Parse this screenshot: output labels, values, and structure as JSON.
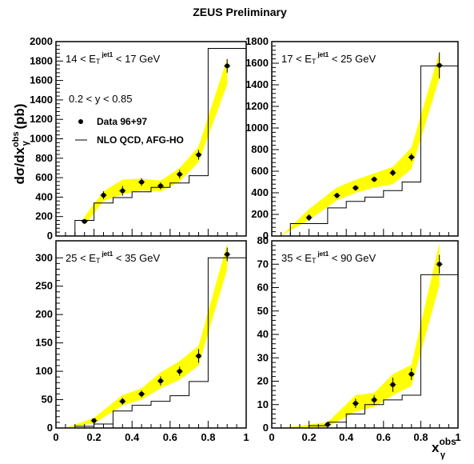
{
  "chart_data": {
    "title": "ZEUS Preliminary",
    "ylabel": {
      "main": "dσ/dx",
      "sup": "obs",
      "sub": "γ",
      "unit": " (pb)"
    },
    "xlabel": {
      "main": "x",
      "sup": "obs",
      "sub": "γ"
    },
    "panels": [
      {
        "type": "scatter",
        "range_label": "14 < E",
        "range_label_sub": "T",
        "range_label_sup": "jet1",
        "range_label_end": " < 17 GeV",
        "xlim": [
          0,
          1
        ],
        "ylim": [
          0,
          2000
        ],
        "yticks": [
          0,
          200,
          400,
          600,
          800,
          1000,
          1200,
          1400,
          1600,
          1800,
          2000
        ],
        "xticks": [],
        "data": {
          "x": [
            0.15,
            0.25,
            0.35,
            0.45,
            0.55,
            0.65,
            0.75,
            0.9
          ],
          "y": [
            150,
            420,
            465,
            555,
            515,
            635,
            835,
            1750
          ],
          "err": [
            20,
            40,
            50,
            40,
            35,
            45,
            50,
            70
          ]
        },
        "band": {
          "x": [
            0.15,
            0.25,
            0.35,
            0.45,
            0.55,
            0.65,
            0.75,
            0.9
          ],
          "lo": [
            110,
            360,
            430,
            470,
            460,
            560,
            760,
            1560
          ],
          "hi": [
            200,
            460,
            580,
            590,
            570,
            700,
            920,
            1830
          ]
        },
        "nlo_hist": {
          "edges": [
            0.1,
            0.2,
            0.3,
            0.4,
            0.5,
            0.6,
            0.7,
            0.8,
            1.0
          ],
          "values": [
            160,
            340,
            395,
            455,
            500,
            545,
            620,
            1930
          ]
        }
      },
      {
        "type": "scatter",
        "range_label": "17 < E",
        "range_label_sub": "T",
        "range_label_sup": "jet1",
        "range_label_end": " < 25 GeV",
        "xlim": [
          0,
          1
        ],
        "ylim": [
          0,
          1800
        ],
        "yticks": [
          0,
          200,
          400,
          600,
          800,
          1000,
          1200,
          1400,
          1600,
          1800
        ],
        "xticks": [],
        "data": {
          "x": [
            0.2,
            0.35,
            0.45,
            0.55,
            0.65,
            0.75,
            0.9
          ],
          "y": [
            170,
            375,
            445,
            525,
            585,
            730,
            1580
          ],
          "err": [
            30,
            25,
            25,
            25,
            30,
            35,
            120
          ]
        },
        "band": {
          "x": [
            0.05,
            0.2,
            0.35,
            0.45,
            0.55,
            0.65,
            0.75,
            0.9
          ],
          "lo": [
            0,
            150,
            330,
            400,
            450,
            480,
            620,
            1460
          ],
          "hi": [
            0,
            250,
            450,
            520,
            580,
            640,
            820,
            1700
          ]
        },
        "nlo_hist": {
          "edges": [
            0.0,
            0.1,
            0.3,
            0.4,
            0.5,
            0.6,
            0.7,
            0.8,
            1.0
          ],
          "values": [
            0,
            115,
            260,
            320,
            360,
            420,
            500,
            1575
          ]
        }
      },
      {
        "type": "scatter",
        "range_label": "25 < E",
        "range_label_sub": "T",
        "range_label_sup": "jet1",
        "range_label_end": " < 35 GeV",
        "xlim": [
          0,
          1
        ],
        "ylim": [
          0,
          330
        ],
        "yticks": [
          0,
          50,
          100,
          150,
          200,
          250,
          300
        ],
        "xticks": [
          0,
          0.2,
          0.4,
          0.6,
          0.8,
          1
        ],
        "data": {
          "x": [
            0.2,
            0.35,
            0.45,
            0.55,
            0.65,
            0.75,
            0.9
          ],
          "y": [
            13,
            47,
            60,
            83,
            100,
            127,
            306
          ],
          "err": [
            3,
            6,
            6,
            8,
            8,
            12,
            12
          ]
        },
        "band": {
          "x": [
            0.05,
            0.2,
            0.35,
            0.45,
            0.55,
            0.65,
            0.75,
            0.9
          ],
          "lo": [
            0,
            8,
            40,
            50,
            70,
            85,
            110,
            280
          ],
          "hi": [
            0,
            18,
            58,
            70,
            98,
            118,
            145,
            325
          ]
        },
        "nlo_hist": {
          "edges": [
            0.1,
            0.2,
            0.3,
            0.4,
            0.5,
            0.6,
            0.7,
            0.8,
            1.0
          ],
          "values": [
            3,
            7,
            30,
            40,
            47,
            57,
            82,
            300
          ]
        }
      },
      {
        "type": "scatter",
        "range_label": "35 < E",
        "range_label_sub": "T",
        "range_label_sup": "jet1",
        "range_label_end": " < 90 GeV",
        "xlim": [
          0,
          1
        ],
        "ylim": [
          0,
          80
        ],
        "yticks": [
          0,
          10,
          20,
          30,
          40,
          50,
          60,
          70,
          80
        ],
        "xticks": [
          0,
          0.2,
          0.4,
          0.6,
          0.8,
          1
        ],
        "data": {
          "x": [
            0.3,
            0.45,
            0.55,
            0.65,
            0.75,
            0.9
          ],
          "y": [
            1.5,
            10.5,
            12.0,
            18.5,
            23.0,
            70.0
          ],
          "err": [
            0.8,
            2.0,
            2.0,
            3.0,
            2.5,
            4.0
          ]
        },
        "band": {
          "x": [
            0.05,
            0.3,
            0.45,
            0.55,
            0.65,
            0.75,
            0.9
          ],
          "lo": [
            0,
            0.5,
            7,
            9,
            14,
            18,
            61
          ],
          "hi": [
            0,
            2.5,
            14,
            15,
            23,
            27,
            79
          ]
        },
        "nlo_hist": {
          "edges": [
            0.2,
            0.3,
            0.4,
            0.5,
            0.6,
            0.7,
            0.8,
            1.0
          ],
          "values": [
            1.0,
            2.5,
            6.0,
            10.0,
            12.0,
            14.0,
            65.5
          ]
        }
      }
    ],
    "annotations": {
      "y_range": "0.2 < y < 0.85",
      "legend_data": "Data 96+97",
      "legend_nlo": "NLO QCD, AFG-HO"
    },
    "colors": {
      "band": "#ffff00",
      "data": "#000000",
      "nlo": "#000000"
    }
  }
}
